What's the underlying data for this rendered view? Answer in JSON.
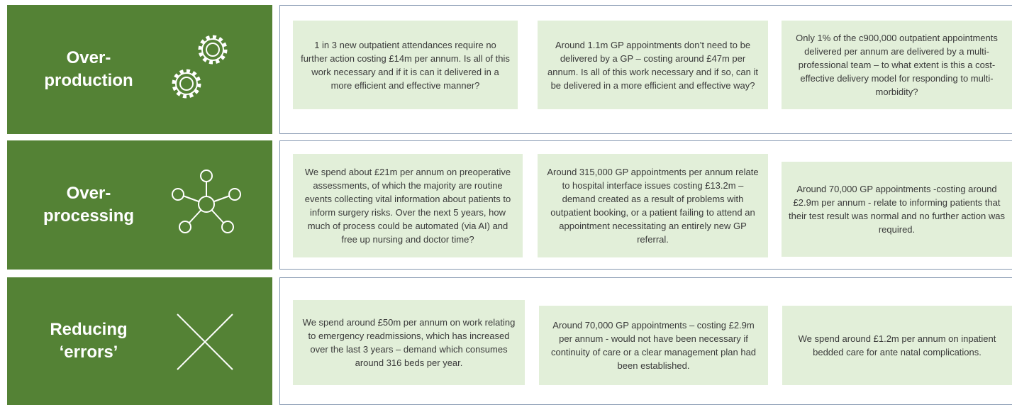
{
  "rows": [
    {
      "title": [
        "Over-",
        "production"
      ],
      "cells": [
        "1 in 3 new outpatient attendances require no further action costing £14m per annum. Is all of this work necessary and if it is can it delivered in a more efficient and effective manner?",
        "Around 1.1m GP appointments don’t need to be delivered by a GP – costing around £47m per annum. Is all of this work necessary and if so, can it be delivered in a more efficient and effective way?",
        "Only 1% of the c900,000 outpatient appointments delivered per annum are delivered by a multi-professional team – to what extent is this a cost-effective delivery model for responding to multi-morbidity?"
      ]
    },
    {
      "title": [
        "Over-",
        "processing"
      ],
      "cells": [
        "We spend about £21m per annum on preoperative assessments, of which the majority are routine events collecting vital information about patients to inform surgery risks. Over the next 5 years, how much of process could be automated (via AI) and free up nursing and doctor time?",
        "Around 315,000 GP appointments per annum relate to hospital interface issues costing £13.2m – demand created as a result of problems with outpatient booking, or a patient failing to attend an appointment necessitating an entirely new GP referral.",
        "Around 70,000 GP appointments  -costing around £2.9m per annum -  relate to informing patients that their test result was normal and no further action was required."
      ]
    },
    {
      "title": [
        "Reducing",
        "‘errors’"
      ],
      "cells": [
        "We spend around £50m per annum on work relating to emergency readmissions, which has increased over the last 3 years – demand which consumes around 316 beds per year.",
        "Around 70,000 GP appointments – costing £2.9m per annum -  would not have been necessary if continuity of care or a clear management plan had been established.",
        "We spend around £1.2m per annum on inpatient bedded care for ante natal complications."
      ]
    }
  ]
}
